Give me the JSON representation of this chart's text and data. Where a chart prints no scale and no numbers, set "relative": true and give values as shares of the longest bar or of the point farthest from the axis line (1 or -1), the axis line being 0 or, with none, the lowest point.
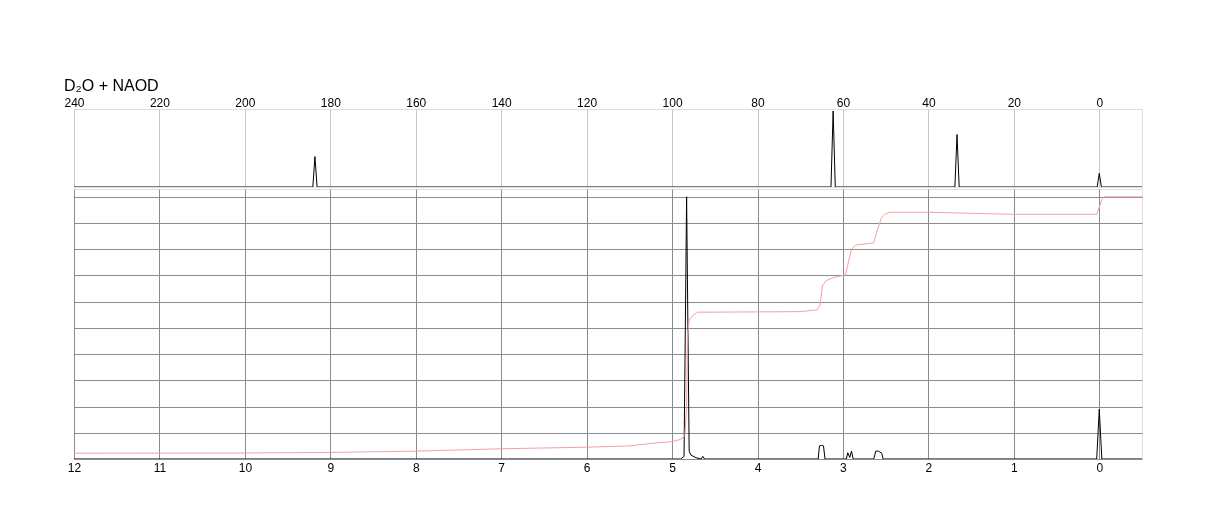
{
  "chart_data": [
    {
      "type": "line",
      "title": "D₂O + NAOD",
      "relative": true,
      "grid": "x",
      "tick_labels": "x",
      "marker": "none",
      "xlim": [
        240,
        -10
      ],
      "xticks": [
        240,
        220,
        200,
        180,
        160,
        140,
        120,
        100,
        80,
        60,
        40,
        20,
        0
      ],
      "series": [
        {
          "color": "#000000",
          "x": [
            240,
            184.1,
            183.6,
            183.1,
            62.8,
            62.3,
            61.8,
            33.8,
            33.3,
            32.8,
            0.5,
            0,
            -0.5,
            -10
          ],
          "values": [
            0,
            0,
            0.4,
            0,
            0,
            1,
            0,
            0,
            0.69,
            0,
            0,
            0.18,
            0,
            0
          ]
        }
      ]
    },
    {
      "type": "line",
      "relative": true,
      "grid": true,
      "tick_labels": "x",
      "marker": "none",
      "xlim": [
        12,
        -0.5
      ],
      "xticks": [
        12,
        11,
        10,
        9,
        8,
        7,
        6,
        5,
        4,
        3,
        2,
        1,
        0
      ],
      "series": [
        {
          "color": "#000000",
          "x": [
            12,
            4.9,
            4.86,
            4.83,
            4.8,
            4.78,
            4.72,
            4.66,
            4.64,
            4.62,
            3.29,
            3.275,
            3.251,
            3.228,
            3.21,
            2.96,
            2.944,
            2.92,
            2.9,
            2.88,
            2.64,
            2.616,
            2.585,
            2.546,
            2.53,
            0.03,
            0,
            -0.03,
            -0.5
          ],
          "values": [
            0,
            0,
            0.01,
            1,
            0.03,
            0.015,
            0.005,
            0,
            0.01,
            0,
            0,
            0.05,
            0.052,
            0.05,
            0,
            0,
            0.024,
            0.006,
            0.03,
            0,
            0,
            0.03,
            0.03,
            0.022,
            0,
            0,
            0.19,
            0,
            0
          ]
        },
        {
          "color": "#f4a0a0",
          "x": [
            12,
            10,
            9,
            8,
            7,
            6,
            5.5,
            5.2,
            5.0,
            4.9,
            4.85,
            4.83,
            4.82,
            4.8,
            4.75,
            4.7,
            4.5,
            4.0,
            3.5,
            3.3,
            3.27,
            3.24,
            3.2,
            3.1,
            2.97,
            2.93,
            2.9,
            2.85,
            2.7,
            2.64,
            2.6,
            2.55,
            2.5,
            2.45,
            2.0,
            1.5,
            1.0,
            0.03,
            0.0,
            -0.03,
            -0.06,
            -0.5
          ],
          "values": [
            0.022,
            0.023,
            0.025,
            0.03,
            0.039,
            0.045,
            0.05,
            0.061,
            0.066,
            0.075,
            0.089,
            0.2,
            0.47,
            0.53,
            0.55,
            0.56,
            0.56,
            0.561,
            0.562,
            0.569,
            0.585,
            0.66,
            0.68,
            0.693,
            0.702,
            0.76,
            0.8,
            0.816,
            0.822,
            0.824,
            0.87,
            0.92,
            0.935,
            0.941,
            0.941,
            0.937,
            0.933,
            0.933,
            0.96,
            0.99,
            1.0,
            1.0
          ]
        }
      ]
    }
  ]
}
